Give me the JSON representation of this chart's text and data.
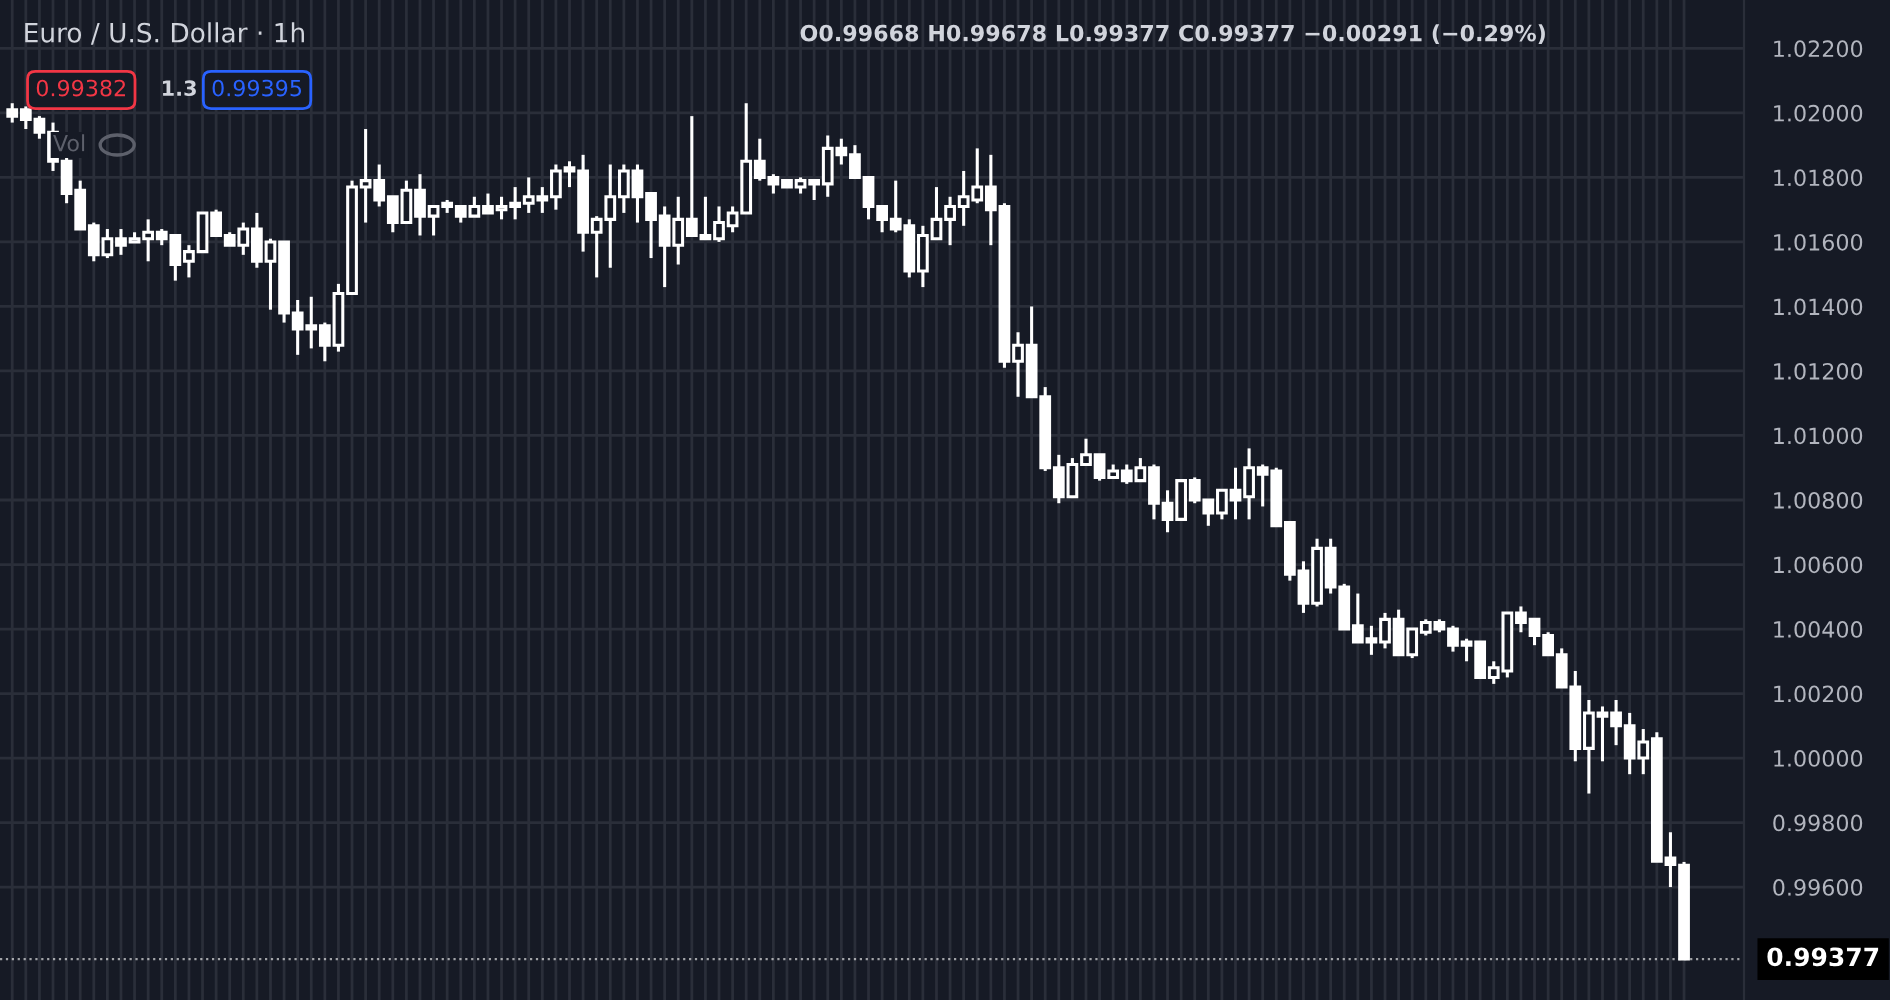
{
  "chart_data": {
    "type": "candlestick",
    "title": "Euro / U.S. Dollar · 1h",
    "annotations": [
      "O0.99668 H0.99678 L0.99377 C0.99377 −0.00291 (−0.29%)",
      "0.99382",
      "1.3",
      "0.99395",
      "Vol"
    ],
    "categories": [
      null,
      null,
      null,
      null,
      null,
      null,
      null,
      null,
      null,
      null,
      null,
      null,
      null,
      null,
      null,
      null,
      null,
      null,
      null,
      null,
      null,
      null,
      null,
      null,
      null,
      null,
      null,
      null,
      null,
      null,
      null,
      null,
      null,
      null,
      null,
      null,
      null,
      null,
      null,
      null,
      null,
      null,
      null,
      null,
      null,
      null,
      null,
      null,
      null,
      null,
      null,
      null,
      null,
      null,
      null,
      null,
      null,
      null,
      null,
      null,
      null,
      null,
      null,
      null,
      null,
      null,
      null,
      null,
      null,
      null,
      null,
      null,
      null,
      null,
      null,
      null,
      null,
      null,
      null,
      null,
      null,
      null,
      null,
      null,
      null,
      null,
      null,
      null,
      null,
      null,
      null,
      null,
      null,
      null,
      null,
      null,
      null,
      null,
      null,
      null,
      null,
      null,
      null,
      null,
      null,
      null,
      null,
      null,
      null,
      null,
      null,
      null,
      null,
      null,
      null,
      null,
      null,
      null,
      null,
      null,
      null,
      null,
      null,
      null
    ],
    "ohlc": [
      [
        1.0201,
        1.0203,
        1.0197,
        1.0199
      ],
      [
        1.0201,
        1.0202,
        1.0195,
        1.0198
      ],
      [
        1.0198,
        1.0199,
        1.0192,
        1.0194
      ],
      [
        1.0194,
        1.0197,
        1.0182,
        1.0185
      ],
      [
        1.0185,
        1.0187,
        1.0172,
        1.0175
      ],
      [
        1.0176,
        1.0179,
        1.0164,
        1.0164
      ],
      [
        1.0165,
        1.0166,
        1.0154,
        1.0156
      ],
      [
        1.0156,
        1.0164,
        1.0155,
        1.0161
      ],
      [
        1.0161,
        1.0164,
        1.0156,
        1.0159
      ],
      [
        1.016,
        1.0163,
        1.016,
        1.0161
      ],
      [
        1.0161,
        1.0167,
        1.0154,
        1.0163
      ],
      [
        1.0163,
        1.0164,
        1.0159,
        1.0161
      ],
      [
        1.0162,
        1.0162,
        1.0148,
        1.0153
      ],
      [
        1.0154,
        1.0159,
        1.0149,
        1.0157
      ],
      [
        1.0157,
        1.0169,
        1.0157,
        1.0169
      ],
      [
        1.0169,
        1.017,
        1.0162,
        1.0162
      ],
      [
        1.0162,
        1.0163,
        1.0159,
        1.0159
      ],
      [
        1.0159,
        1.0166,
        1.0156,
        1.0164
      ],
      [
        1.0164,
        1.0169,
        1.0152,
        1.0154
      ],
      [
        1.0154,
        1.0161,
        1.0139,
        1.016
      ],
      [
        1.016,
        1.016,
        1.0135,
        1.0138
      ],
      [
        1.0138,
        1.0142,
        1.0125,
        1.0133
      ],
      [
        1.0134,
        1.0143,
        1.0127,
        1.0133
      ],
      [
        1.0134,
        1.0135,
        1.0123,
        1.0128
      ],
      [
        1.0128,
        1.0147,
        1.0126,
        1.0144
      ],
      [
        1.0144,
        1.0179,
        1.0144,
        1.0177
      ],
      [
        1.0177,
        1.0195,
        1.0166,
        1.0179
      ],
      [
        1.0179,
        1.0184,
        1.0171,
        1.0173
      ],
      [
        1.0174,
        1.0174,
        1.0163,
        1.0166
      ],
      [
        1.0166,
        1.0179,
        1.0166,
        1.0176
      ],
      [
        1.0176,
        1.0181,
        1.0162,
        1.0168
      ],
      [
        1.0168,
        1.0171,
        1.0162,
        1.0171
      ],
      [
        1.0172,
        1.0173,
        1.0169,
        1.0171
      ],
      [
        1.0171,
        1.0171,
        1.0166,
        1.0168
      ],
      [
        1.0168,
        1.0174,
        1.0168,
        1.0171
      ],
      [
        1.0171,
        1.0175,
        1.0169,
        1.0169
      ],
      [
        1.017,
        1.0174,
        1.0167,
        1.0171
      ],
      [
        1.0172,
        1.0177,
        1.0167,
        1.0171
      ],
      [
        1.0172,
        1.018,
        1.0169,
        1.0174
      ],
      [
        1.0174,
        1.0177,
        1.0169,
        1.0173
      ],
      [
        1.0174,
        1.0184,
        1.017,
        1.0182
      ],
      [
        1.0183,
        1.0185,
        1.0177,
        1.0182
      ],
      [
        1.0182,
        1.0187,
        1.0157,
        1.0163
      ],
      [
        1.0163,
        1.0168,
        1.0149,
        1.0167
      ],
      [
        1.0167,
        1.0184,
        1.0152,
        1.0174
      ],
      [
        1.0174,
        1.0184,
        1.0169,
        1.0182
      ],
      [
        1.0182,
        1.0184,
        1.0166,
        1.0174
      ],
      [
        1.0175,
        1.0175,
        1.0155,
        1.0167
      ],
      [
        1.0168,
        1.0171,
        1.0146,
        1.0159
      ],
      [
        1.0159,
        1.0174,
        1.0153,
        1.0167
      ],
      [
        1.0167,
        1.0199,
        1.0162,
        1.0162
      ],
      [
        1.0162,
        1.0174,
        1.0161,
        1.0161
      ],
      [
        1.0161,
        1.0171,
        1.016,
        1.0166
      ],
      [
        1.0165,
        1.0171,
        1.0163,
        1.0169
      ],
      [
        1.0169,
        1.0203,
        1.0169,
        1.0185
      ],
      [
        1.0185,
        1.0192,
        1.0179,
        1.018
      ],
      [
        1.018,
        1.0181,
        1.0175,
        1.0178
      ],
      [
        1.0179,
        1.0179,
        1.0177,
        1.0177
      ],
      [
        1.0177,
        1.018,
        1.0175,
        1.0179
      ],
      [
        1.0179,
        1.0179,
        1.0173,
        1.0178
      ],
      [
        1.0178,
        1.0193,
        1.0174,
        1.0189
      ],
      [
        1.0189,
        1.0192,
        1.0184,
        1.0187
      ],
      [
        1.0187,
        1.019,
        1.018,
        1.018
      ],
      [
        1.018,
        1.018,
        1.0167,
        1.0171
      ],
      [
        1.0171,
        1.0171,
        1.0163,
        1.0167
      ],
      [
        1.0167,
        1.0179,
        1.0163,
        1.0164
      ],
      [
        1.0165,
        1.0167,
        1.0149,
        1.0151
      ],
      [
        1.0151,
        1.0165,
        1.0146,
        1.0162
      ],
      [
        1.0161,
        1.0177,
        1.0161,
        1.0167
      ],
      [
        1.0167,
        1.0174,
        1.0159,
        1.0171
      ],
      [
        1.0171,
        1.0182,
        1.0165,
        1.0174
      ],
      [
        1.0173,
        1.0189,
        1.0172,
        1.0177
      ],
      [
        1.0177,
        1.0187,
        1.0159,
        1.017
      ],
      [
        1.0171,
        1.0172,
        1.0121,
        1.0123
      ],
      [
        1.0123,
        1.0132,
        1.0112,
        1.0128
      ],
      [
        1.0128,
        1.014,
        1.0112,
        1.0112
      ],
      [
        1.0112,
        1.0115,
        1.0089,
        1.009
      ],
      [
        1.009,
        1.0094,
        1.0079,
        1.0081
      ],
      [
        1.0081,
        1.0093,
        1.0081,
        1.0091
      ],
      [
        1.0091,
        1.0099,
        1.0091,
        1.0094
      ],
      [
        1.0094,
        1.0094,
        1.0086,
        1.0087
      ],
      [
        1.0087,
        1.0091,
        1.0087,
        1.0089
      ],
      [
        1.0089,
        1.0091,
        1.0085,
        1.0086
      ],
      [
        1.0086,
        1.0093,
        1.0086,
        1.009
      ],
      [
        1.009,
        1.0091,
        1.0074,
        1.0079
      ],
      [
        1.0079,
        1.0083,
        1.007,
        1.0074
      ],
      [
        1.0074,
        1.0086,
        1.0074,
        1.0086
      ],
      [
        1.0086,
        1.0087,
        1.0079,
        1.008
      ],
      [
        1.008,
        1.008,
        1.0072,
        1.0076
      ],
      [
        1.0076,
        1.0083,
        1.0074,
        1.0083
      ],
      [
        1.0083,
        1.009,
        1.0074,
        1.008
      ],
      [
        1.0081,
        1.0096,
        1.0074,
        1.009
      ],
      [
        1.009,
        1.0091,
        1.0078,
        1.0088
      ],
      [
        1.0089,
        1.009,
        1.0072,
        1.0072
      ],
      [
        1.0073,
        1.0073,
        1.0055,
        1.0057
      ],
      [
        1.0058,
        1.0061,
        1.0045,
        1.0048
      ],
      [
        1.0048,
        1.0068,
        1.0047,
        1.0065
      ],
      [
        1.0065,
        1.0068,
        1.0051,
        1.0053
      ],
      [
        1.0053,
        1.0054,
        1.004,
        1.004
      ],
      [
        1.0041,
        1.0051,
        1.0036,
        1.0036
      ],
      [
        1.0037,
        1.0041,
        1.0032,
        1.0036
      ],
      [
        1.0036,
        1.0045,
        1.0034,
        1.0043
      ],
      [
        1.0043,
        1.0046,
        1.0032,
        1.0032
      ],
      [
        1.0032,
        1.004,
        1.0031,
        1.004
      ],
      [
        1.0039,
        1.0043,
        1.0038,
        1.0042
      ],
      [
        1.0042,
        1.0043,
        1.0039,
        1.004
      ],
      [
        1.004,
        1.0041,
        1.0033,
        1.0035
      ],
      [
        1.0036,
        1.0037,
        1.003,
        1.0035
      ],
      [
        1.0036,
        1.0036,
        1.0025,
        1.0025
      ],
      [
        1.0025,
        1.003,
        1.0023,
        1.0028
      ],
      [
        1.0027,
        1.0045,
        1.0025,
        1.0045
      ],
      [
        1.0045,
        1.0047,
        1.0039,
        1.0042
      ],
      [
        1.0043,
        1.0043,
        1.0035,
        1.0038
      ],
      [
        1.0038,
        1.0039,
        1.0032,
        1.0032
      ],
      [
        1.0032,
        1.0034,
        1.0022,
        1.0022
      ],
      [
        1.0022,
        1.0027,
        0.9999,
        1.0003
      ],
      [
        1.0003,
        1.0018,
        0.9989,
        1.0014
      ],
      [
        1.0014,
        1.0016,
        0.9999,
        1.0013
      ],
      [
        1.0014,
        1.0018,
        1.0004,
        1.001
      ],
      [
        1.001,
        1.0014,
        0.9995,
        1.0
      ],
      [
        1.0,
        1.0009,
        0.9995,
        1.0005
      ],
      [
        1.0006,
        1.0008,
        0.9968,
        0.9968
      ],
      [
        0.9969,
        0.9977,
        0.996,
        0.9967
      ],
      [
        0.99668,
        0.99678,
        0.99377,
        0.99377
      ]
    ],
    "color": "#ffffff",
    "ylim": [
      0.9925,
      1.0235
    ],
    "yticks": [
      {
        "value": 0.996,
        "label": "0.99600"
      },
      {
        "value": 0.998,
        "label": "0.99800"
      },
      {
        "value": 1.0,
        "label": "1.00000"
      },
      {
        "value": 1.002,
        "label": "1.00200"
      },
      {
        "value": 1.004,
        "label": "1.00400"
      },
      {
        "value": 1.006,
        "label": "1.00600"
      },
      {
        "value": 1.008,
        "label": "1.00800"
      },
      {
        "value": 1.01,
        "label": "1.01000"
      },
      {
        "value": 1.012,
        "label": "1.01200"
      },
      {
        "value": 1.014,
        "label": "1.01400"
      },
      {
        "value": 1.016,
        "label": "1.01600"
      },
      {
        "value": 1.018,
        "label": "1.01800"
      },
      {
        "value": 1.02,
        "label": "1.02000"
      },
      {
        "value": 1.022,
        "label": "1.02200"
      }
    ],
    "ref_lines": [
      {
        "axis": "y",
        "value": 0.99377,
        "label": "0.99377",
        "color": "#ffffff",
        "line_style": "dotted"
      }
    ],
    "grid": true,
    "tick_labels": "y"
  }
}
